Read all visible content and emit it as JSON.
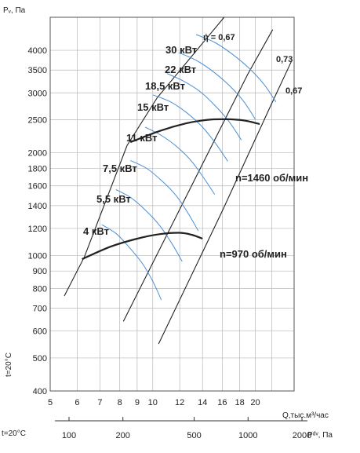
{
  "chart_data": {
    "type": "line",
    "y_axis_label": "Pᵥ, Па",
    "x_axis_label": "Q,тыс.м³/час",
    "pdv_axis_label": "Pᵈᵛ, Па",
    "temperature_label": "t=20°C",
    "temperature_label_bottom": "t=20°C",
    "y_scale": "log",
    "x_scale": "log",
    "y_ticks": [
      400,
      500,
      600,
      700,
      800,
      900,
      1000,
      1200,
      1400,
      1600,
      1800,
      2000,
      2500,
      3000,
      3500,
      4000
    ],
    "x_ticks": [
      5,
      6,
      7,
      8,
      9,
      10,
      12,
      14,
      16,
      18,
      20
    ],
    "pdv_ticks": [
      100,
      200,
      500,
      1000,
      2000
    ],
    "pdv_tick_labels": [
      "100",
      "200",
      "500",
      "1000",
      "2000"
    ],
    "colors": {
      "curve": "#4a8fd4",
      "line": "#222222",
      "grid": "#b8b8b8"
    },
    "power_curves": [
      {
        "label": "4 кВт",
        "points": [
          [
            7.1,
            1230
          ],
          [
            7.8,
            1160
          ],
          [
            8.5,
            1060
          ],
          [
            9.3,
            950
          ],
          [
            10.0,
            840
          ],
          [
            10.6,
            740
          ]
        ]
      },
      {
        "label": "5,5 кВт",
        "points": [
          [
            7.8,
            1560
          ],
          [
            8.6,
            1480
          ],
          [
            9.5,
            1360
          ],
          [
            10.5,
            1220
          ],
          [
            11.4,
            1080
          ],
          [
            12.2,
            960
          ]
        ]
      },
      {
        "label": "7,5 кВт",
        "points": [
          [
            8.6,
            1900
          ],
          [
            9.6,
            1800
          ],
          [
            10.6,
            1660
          ],
          [
            11.7,
            1500
          ],
          [
            12.7,
            1330
          ],
          [
            13.6,
            1180
          ]
        ]
      },
      {
        "label": "11 кВт",
        "points": [
          [
            9.5,
            2380
          ],
          [
            10.6,
            2250
          ],
          [
            11.8,
            2080
          ],
          [
            13.0,
            1890
          ],
          [
            14.1,
            1690
          ],
          [
            15.2,
            1510
          ]
        ]
      },
      {
        "label": "15 кВт",
        "points": [
          [
            10.0,
            2960
          ],
          [
            11.3,
            2820
          ],
          [
            12.6,
            2620
          ],
          [
            14.0,
            2380
          ],
          [
            15.3,
            2130
          ],
          [
            16.6,
            1890
          ]
        ]
      },
      {
        "label": "18,5 кВт",
        "points": [
          [
            11.0,
            3420
          ],
          [
            12.3,
            3250
          ],
          [
            13.8,
            3020
          ],
          [
            15.3,
            2740
          ],
          [
            16.8,
            2460
          ],
          [
            18.2,
            2180
          ]
        ]
      },
      {
        "label": "22 кВт",
        "points": [
          [
            11.9,
            3940
          ],
          [
            13.4,
            3740
          ],
          [
            15.0,
            3470
          ],
          [
            16.8,
            3150
          ],
          [
            18.5,
            2830
          ],
          [
            20.0,
            2510
          ]
        ]
      },
      {
        "label": "30 кВт",
        "points": [
          [
            13.4,
            4450
          ],
          [
            15.2,
            4220
          ],
          [
            17.1,
            3900
          ],
          [
            19.2,
            3540
          ],
          [
            21.2,
            3180
          ],
          [
            23.0,
            2820
          ]
        ]
      }
    ],
    "speed_curves": [
      {
        "label": "n=970 об/мин",
        "points": [
          [
            6.2,
            975
          ],
          [
            7.5,
            1060
          ],
          [
            9.0,
            1120
          ],
          [
            10.5,
            1155
          ],
          [
            12.0,
            1165
          ],
          [
            13.0,
            1150
          ],
          [
            14.0,
            1120
          ]
        ]
      },
      {
        "label": "n=1460 об/мин",
        "points": [
          [
            8.6,
            2150
          ],
          [
            10.5,
            2320
          ],
          [
            12.5,
            2440
          ],
          [
            14.5,
            2500
          ],
          [
            16.5,
            2510
          ],
          [
            18.5,
            2490
          ],
          [
            20.6,
            2430
          ]
        ]
      }
    ],
    "efficiency_lines": [
      {
        "label": "ή = 0,67",
        "points": [
          [
            5.5,
            760
          ],
          [
            6.3,
            990
          ],
          [
            8.4,
            2100
          ],
          [
            10.3,
            2900
          ],
          [
            16.2,
            5000
          ]
        ]
      },
      {
        "label": "0,73",
        "points": [
          [
            8.2,
            640
          ],
          [
            13.0,
            1600
          ],
          [
            19.0,
            3400
          ],
          [
            22.5,
            4600
          ]
        ]
      },
      {
        "label": "0,67",
        "points": [
          [
            10.4,
            550
          ],
          [
            16.0,
            1350
          ],
          [
            22.0,
            2700
          ],
          [
            25.5,
            3700
          ]
        ]
      }
    ]
  }
}
